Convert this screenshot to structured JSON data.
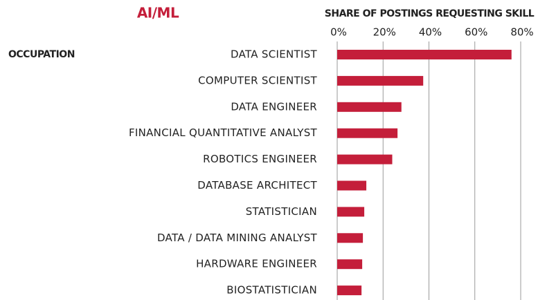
{
  "chart_data": {
    "type": "bar",
    "orientation": "horizontal",
    "title": "AI/ML",
    "xlabel": "SHARE OF POSTINGS REQUESTING SKILL",
    "ylabel": "OCCUPATION",
    "categories": [
      "DATA SCIENTIST",
      "COMPUTER SCIENTIST",
      "DATA ENGINEER",
      "FINANCIAL QUANTITATIVE ANALYST",
      "ROBOTICS ENGINEER",
      "DATABASE ARCHITECT",
      "STATISTICIAN",
      "DATA / DATA MINING ANALYST",
      "HARDWARE ENGINEER",
      "BIOSTATISTICIAN"
    ],
    "values": [
      76,
      37.5,
      28,
      26.3,
      24,
      12.7,
      11.8,
      11.2,
      10.9,
      10.6
    ],
    "color": "#c41e3a",
    "xlim": [
      0,
      80
    ],
    "xticks": [
      {
        "value": 0,
        "label": "0%"
      },
      {
        "value": 20,
        "label": "20%"
      },
      {
        "value": 40,
        "label": "40%"
      },
      {
        "value": 60,
        "label": "60%"
      },
      {
        "value": 80,
        "label": "80%"
      }
    ],
    "grid": true
  }
}
